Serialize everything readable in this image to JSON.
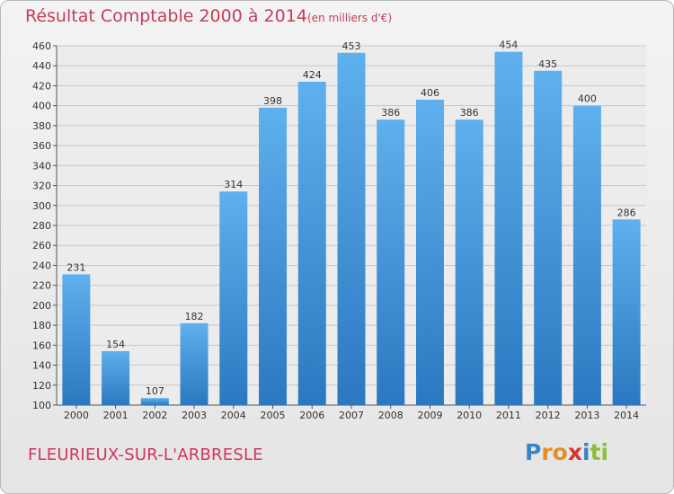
{
  "chart_data": {
    "type": "bar",
    "title": "Résultat Comptable 2000 à 2014",
    "subtitle": "(en milliers d'€)",
    "categories": [
      "2000",
      "2001",
      "2002",
      "2003",
      "2004",
      "2005",
      "2006",
      "2007",
      "2008",
      "2009",
      "2010",
      "2011",
      "2012",
      "2013",
      "2014"
    ],
    "values": [
      231,
      154,
      107,
      182,
      314,
      398,
      424,
      453,
      386,
      406,
      386,
      454,
      435,
      400,
      286
    ],
    "ylim": [
      100,
      460
    ],
    "yticks": [
      100,
      120,
      140,
      160,
      180,
      200,
      220,
      240,
      260,
      280,
      300,
      320,
      340,
      360,
      380,
      400,
      420,
      440,
      460
    ],
    "grid": true,
    "bar_color": "#3a8fd6",
    "title_color": "#c0405a"
  },
  "footer": {
    "town": "FLEURIEUX-SUR-L'ARBRESLE",
    "logo_letters": [
      "P",
      "r",
      "o",
      "x",
      "i",
      "t",
      "i"
    ],
    "logo_colors": [
      "#3b83c7",
      "#e0902a",
      "#e0902a",
      "#d8342f",
      "#3b83c7",
      "#8bbf3a",
      "#8bbf3a"
    ]
  }
}
